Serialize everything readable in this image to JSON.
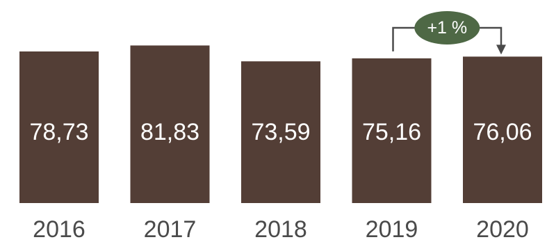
{
  "chart_data": {
    "type": "bar",
    "categories": [
      "2016",
      "2017",
      "2018",
      "2019",
      "2020"
    ],
    "values": [
      78.73,
      81.83,
      73.59,
      75.16,
      76.06
    ],
    "value_labels": [
      "78,73",
      "81,83",
      "73,59",
      "75,16",
      "76,06"
    ],
    "title": "",
    "xlabel": "",
    "ylabel": "",
    "grid": false,
    "legend": "none",
    "annotation": {
      "text": "+1 %",
      "from_category": "2019",
      "to_category": "2020"
    }
  },
  "colors": {
    "bar": "#533e36",
    "bar_text": "#ffffff",
    "axis_text": "#4a4a4a",
    "badge_fill": "#4e6845",
    "badge_text": "#ffffff",
    "connector": "#4a4a4a"
  }
}
